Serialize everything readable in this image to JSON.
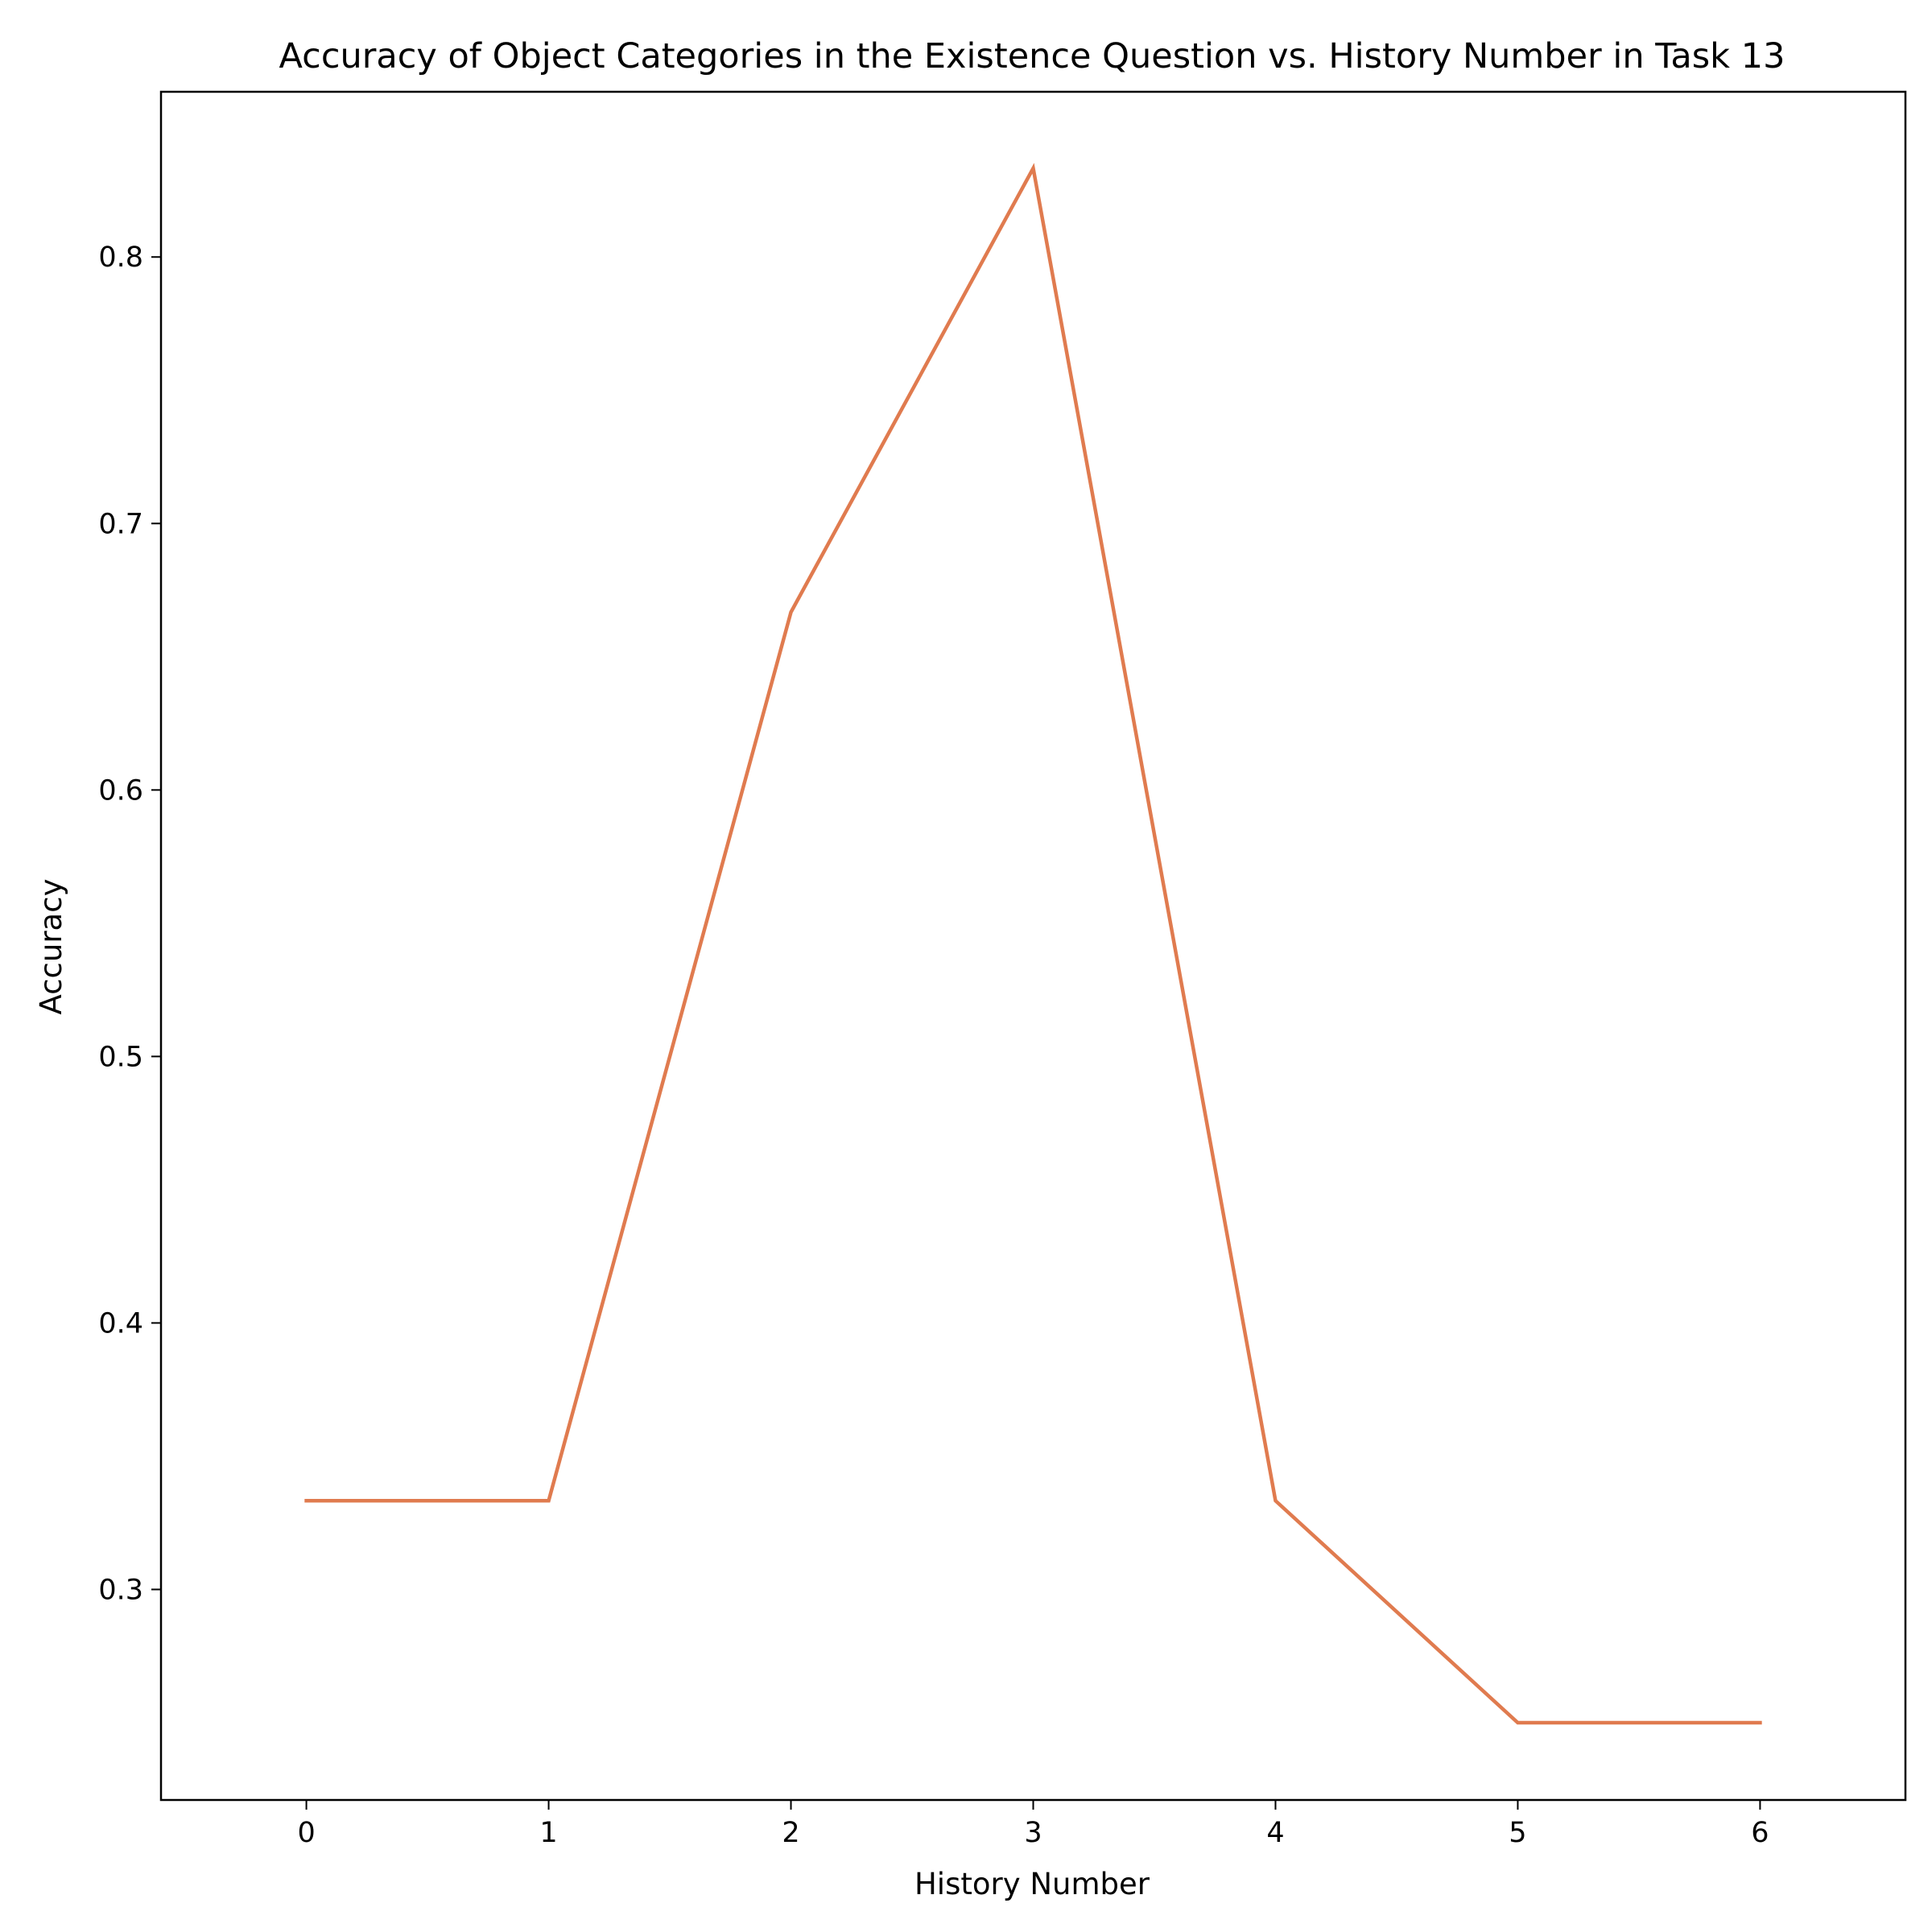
{
  "chart_data": {
    "type": "line",
    "title": "Accuracy of Object Categories in the Existence Question vs. History Number in Task 13",
    "xlabel": "History Number",
    "ylabel": "Accuracy",
    "x": [
      0,
      1,
      2,
      3,
      4,
      5,
      6
    ],
    "series": [
      {
        "values": [
          0.3333,
          0.3333,
          0.6667,
          0.8333,
          0.3333,
          0.25,
          0.25
        ],
        "color": "#e07b4f"
      }
    ],
    "xlim": [
      -0.6,
      6.6
    ],
    "ylim": [
      0.221,
      0.862
    ],
    "xticks": [
      0,
      1,
      2,
      3,
      4,
      5,
      6
    ],
    "xtick_labels": [
      "0",
      "1",
      "2",
      "3",
      "4",
      "5",
      "6"
    ],
    "yticks": [
      0.3,
      0.4,
      0.5,
      0.6,
      0.7,
      0.8
    ],
    "ytick_labels": [
      "0.3",
      "0.4",
      "0.5",
      "0.6",
      "0.7",
      "0.8"
    ],
    "grid": false,
    "legend": "none"
  }
}
